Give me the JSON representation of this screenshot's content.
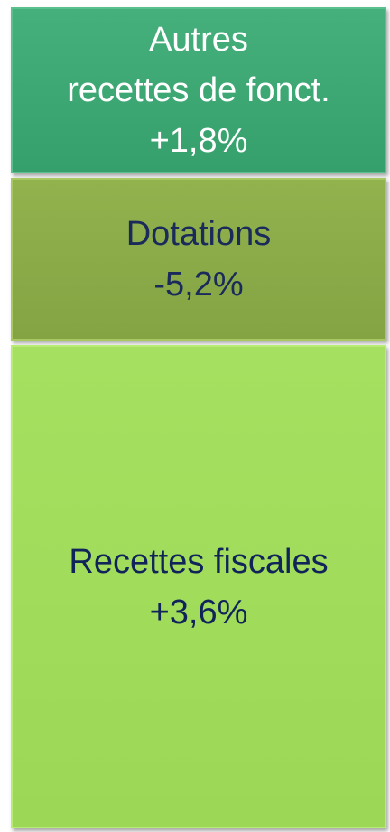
{
  "blocks": [
    {
      "lines": [
        "Autres",
        "recettes de fonct.",
        "+1,8%"
      ]
    },
    {
      "lines": [
        "Dotations",
        "-5,2%"
      ]
    },
    {
      "lines": [
        "Recettes fiscales",
        "+3,6%"
      ]
    }
  ]
}
